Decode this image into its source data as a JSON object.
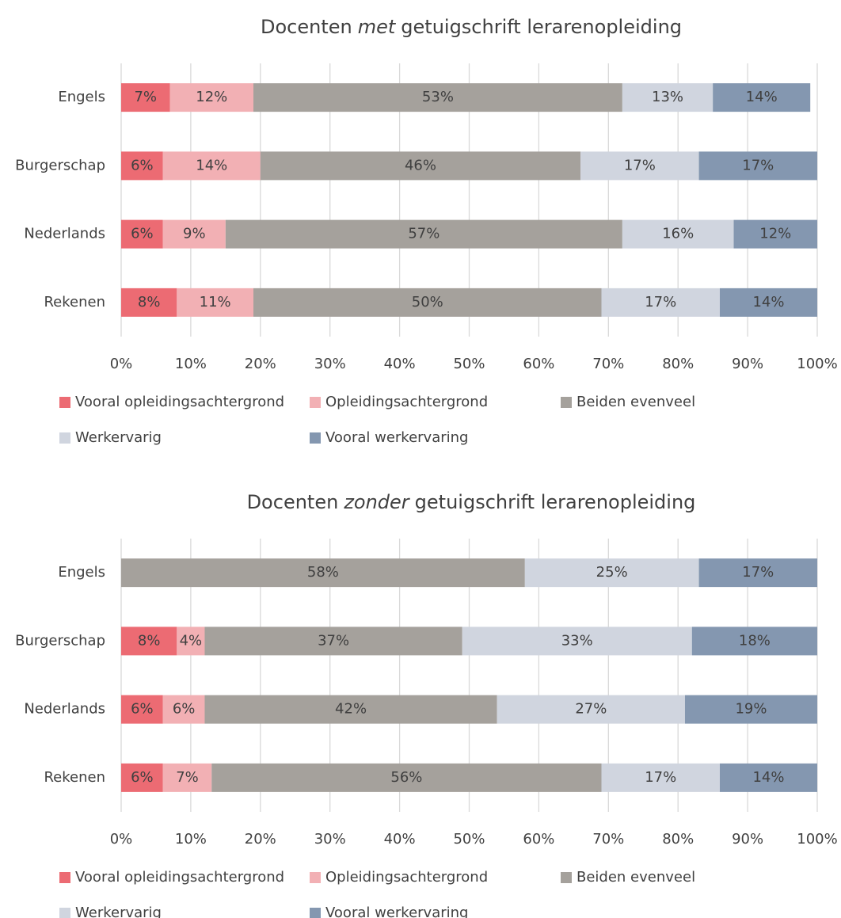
{
  "chart_data": [
    {
      "type": "bar",
      "orientation": "horizontal",
      "stacked": true,
      "title": [
        "Docenten",
        "met",
        "getuigschrift lerarenopleiding"
      ],
      "title_italic": [
        false,
        true,
        false
      ],
      "categories": [
        "Engels",
        "Burgerschap",
        "Nederlands",
        "Rekenen"
      ],
      "series": [
        {
          "name": "Vooral opleidingsachtergrond",
          "color": "#ec6b73",
          "values": [
            7,
            6,
            6,
            8
          ],
          "value_labels": [
            "7%",
            "6%",
            "6%",
            "8%"
          ]
        },
        {
          "name": "Opleidingsachtergrond",
          "color": "#f2b0b4",
          "values": [
            12,
            14,
            9,
            11
          ],
          "value_labels": [
            "12%",
            "14%",
            "9%",
            "11%"
          ]
        },
        {
          "name": "Beiden evenveel",
          "color": "#a5a19c",
          "values": [
            53,
            46,
            57,
            50
          ],
          "value_labels": [
            "53%",
            "46%",
            "57%",
            "50%"
          ]
        },
        {
          "name": "Werkervarig",
          "color": "#d0d5df",
          "values": [
            13,
            17,
            16,
            17
          ],
          "value_labels": [
            "13%",
            "17%",
            "16%",
            "17%"
          ]
        },
        {
          "name": "Vooral werkervaring",
          "color": "#8497b0",
          "values": [
            14,
            17,
            12,
            14
          ],
          "value_labels": [
            "14%",
            "17%",
            "12%",
            "14%"
          ]
        }
      ],
      "xlim": [
        0,
        100
      ],
      "xticks": [
        {
          "value": 0,
          "label": "0%"
        },
        {
          "value": 10,
          "label": "10%"
        },
        {
          "value": 20,
          "label": "20%"
        },
        {
          "value": 30,
          "label": "30%"
        },
        {
          "value": 40,
          "label": "40%"
        },
        {
          "value": 50,
          "label": "50%"
        },
        {
          "value": 60,
          "label": "60%"
        },
        {
          "value": 70,
          "label": "70%"
        },
        {
          "value": 80,
          "label": "80%"
        },
        {
          "value": 90,
          "label": "90%"
        },
        {
          "value": 100,
          "label": "100%"
        }
      ],
      "grid": true,
      "legend": "bottom"
    },
    {
      "type": "bar",
      "orientation": "horizontal",
      "stacked": true,
      "title": [
        "Docenten",
        "zonder",
        "getuigschrift lerarenopleiding"
      ],
      "title_italic": [
        false,
        true,
        false
      ],
      "categories": [
        "Engels",
        "Burgerschap",
        "Nederlands",
        "Rekenen"
      ],
      "series": [
        {
          "name": "Vooral opleidingsachtergrond",
          "color": "#ec6b73",
          "values": [
            0,
            8,
            6,
            6
          ],
          "value_labels": [
            null,
            "8%",
            "6%",
            "6%"
          ]
        },
        {
          "name": "Opleidingsachtergrond",
          "color": "#f2b0b4",
          "values": [
            0,
            4,
            6,
            7
          ],
          "value_labels": [
            null,
            "4%",
            "6%",
            "7%"
          ]
        },
        {
          "name": "Beiden evenveel",
          "color": "#a5a19c",
          "values": [
            58,
            37,
            42,
            56
          ],
          "value_labels": [
            "58%",
            "37%",
            "42%",
            "56%"
          ]
        },
        {
          "name": "Werkervarig",
          "color": "#d0d5df",
          "values": [
            25,
            33,
            27,
            17
          ],
          "value_labels": [
            "25%",
            "33%",
            "27%",
            "17%"
          ]
        },
        {
          "name": "Vooral werkervaring",
          "color": "#8497b0",
          "values": [
            17,
            18,
            19,
            14
          ],
          "value_labels": [
            "17%",
            "18%",
            "19%",
            "14%"
          ]
        }
      ],
      "xlim": [
        0,
        100
      ],
      "xticks": [
        {
          "value": 0,
          "label": "0%"
        },
        {
          "value": 10,
          "label": "10%"
        },
        {
          "value": 20,
          "label": "20%"
        },
        {
          "value": 30,
          "label": "30%"
        },
        {
          "value": 40,
          "label": "40%"
        },
        {
          "value": 50,
          "label": "50%"
        },
        {
          "value": 60,
          "label": "60%"
        },
        {
          "value": 70,
          "label": "70%"
        },
        {
          "value": 80,
          "label": "80%"
        },
        {
          "value": 90,
          "label": "90%"
        },
        {
          "value": 100,
          "label": "100%"
        }
      ],
      "grid": true,
      "legend": "bottom"
    }
  ]
}
